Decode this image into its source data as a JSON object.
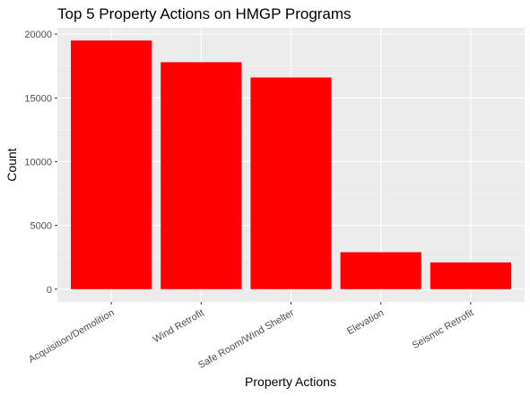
{
  "chart_data": {
    "type": "bar",
    "title": "Top 5 Property Actions on HMGP Programs",
    "xlabel": "Property Actions",
    "ylabel": "Count",
    "categories": [
      "Acquisition/Demolition",
      "Wind Retrofit",
      "Safe Room/Wind Shelter",
      "Elevation",
      "Seismic Retrofit"
    ],
    "values": [
      19500,
      17800,
      16600,
      2900,
      2100
    ],
    "yticks": [
      0,
      5000,
      10000,
      15000,
      20000
    ],
    "ylim": [
      -1000,
      20500
    ],
    "grid": true,
    "legend": "none",
    "colors": {
      "bar": "#FF0000",
      "panel": "#EBEBEB",
      "grid_major": "#FFFFFF",
      "grid_minor": "#F5F5F5",
      "tick_text": "#4D4D4D",
      "tick_mark": "#333333"
    }
  }
}
